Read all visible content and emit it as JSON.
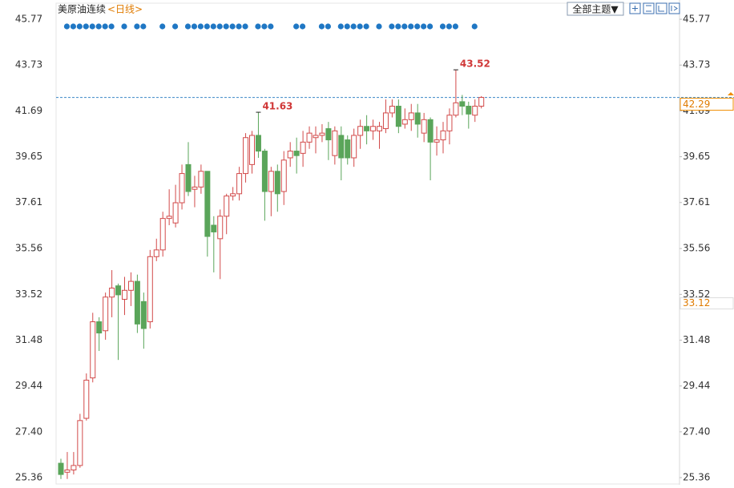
{
  "chart_data": {
    "type": "candlestick",
    "title": "美原油连续",
    "period": "<日线>",
    "toolbar_button": "全部主题▼",
    "ylim": [
      25.04,
      46.45
    ],
    "yticks": [
      25.36,
      {
        "value": 27.4,
        "label": "27.40"
      },
      29.44,
      31.48,
      33.52,
      35.56,
      37.61,
      39.65,
      41.69,
      43.73,
      45.77
    ],
    "up_color": "#d24a4a",
    "down_color": "#5aa55a",
    "last_line_color": "#3b87c6",
    "right_axis_marker": 33.12,
    "open": [
      26.0,
      25.6,
      25.7,
      25.9,
      28.0,
      29.8,
      32.3,
      31.9,
      33.4,
      33.9,
      33.3,
      33.7,
      34.1,
      33.2,
      32.3,
      35.2,
      35.5,
      36.9,
      36.7,
      37.6,
      39.3,
      38.2,
      38.3,
      39.0,
      36.6,
      36.0,
      37.0,
      37.9,
      38.0,
      38.9,
      39.3,
      40.6,
      39.9,
      38.1,
      39.0,
      38.1,
      39.6,
      39.9,
      39.8,
      40.3,
      40.5,
      40.6,
      40.9,
      39.7,
      40.6,
      40.4,
      39.6,
      40.6,
      41.0,
      40.8,
      40.8,
      40.9,
      41.6,
      41.9,
      41.1,
      41.3,
      41.6,
      40.7,
      41.3,
      40.3,
      40.4,
      40.8,
      41.5,
      42.1,
      41.9,
      41.5,
      41.9
    ],
    "high": [
      26.2,
      26.5,
      26.5,
      28.2,
      30.0,
      32.7,
      32.5,
      33.6,
      34.6,
      34.0,
      34.3,
      34.5,
      34.4,
      33.6,
      35.5,
      36.0,
      37.2,
      38.2,
      38.4,
      39.3,
      40.3,
      38.8,
      39.3,
      39.0,
      37.0,
      37.3,
      38.0,
      38.3,
      39.2,
      40.7,
      40.8,
      41.63,
      40.0,
      39.2,
      39.3,
      39.9,
      40.3,
      40.5,
      40.8,
      41.0,
      41.0,
      41.1,
      41.2,
      41.0,
      41.0,
      40.6,
      40.9,
      41.3,
      41.5,
      41.3,
      41.2,
      42.2,
      42.2,
      42.2,
      41.8,
      42.0,
      42.0,
      41.6,
      41.4,
      41.0,
      41.2,
      41.8,
      43.52,
      42.4,
      42.1,
      42.2,
      42.35
    ],
    "low": [
      25.3,
      25.3,
      25.5,
      25.8,
      27.9,
      29.6,
      31.0,
      31.5,
      32.5,
      30.6,
      32.6,
      33.0,
      31.8,
      31.1,
      32.0,
      35.0,
      35.2,
      36.6,
      36.5,
      37.3,
      37.9,
      37.4,
      38.0,
      35.2,
      34.5,
      34.2,
      36.2,
      37.7,
      37.7,
      38.5,
      38.9,
      39.6,
      36.8,
      37.0,
      37.2,
      37.5,
      39.2,
      38.9,
      39.2,
      40.0,
      39.8,
      40.3,
      39.5,
      39.3,
      38.6,
      39.3,
      39.2,
      40.0,
      40.2,
      40.4,
      40.0,
      40.7,
      41.4,
      40.7,
      40.9,
      40.8,
      40.5,
      40.3,
      38.6,
      39.7,
      39.8,
      40.2,
      41.4,
      41.5,
      40.9,
      41.2,
      41.8
    ],
    "close": [
      25.5,
      25.7,
      25.9,
      27.9,
      29.7,
      32.3,
      31.8,
      33.4,
      33.8,
      33.5,
      33.7,
      34.1,
      32.2,
      32.0,
      35.2,
      35.5,
      36.9,
      37.0,
      37.6,
      38.9,
      38.1,
      38.3,
      39.0,
      36.1,
      36.3,
      37.0,
      37.9,
      38.0,
      38.9,
      40.5,
      40.6,
      39.9,
      38.1,
      39.0,
      38.0,
      39.5,
      39.9,
      39.7,
      40.3,
      40.7,
      40.6,
      40.7,
      40.4,
      40.8,
      39.6,
      39.6,
      40.6,
      41.0,
      40.8,
      41.0,
      41.0,
      41.6,
      41.9,
      41.0,
      41.3,
      41.6,
      41.1,
      41.3,
      40.3,
      40.4,
      40.8,
      41.5,
      42.05,
      41.9,
      41.55,
      41.9,
      42.29
    ]
  }
}
